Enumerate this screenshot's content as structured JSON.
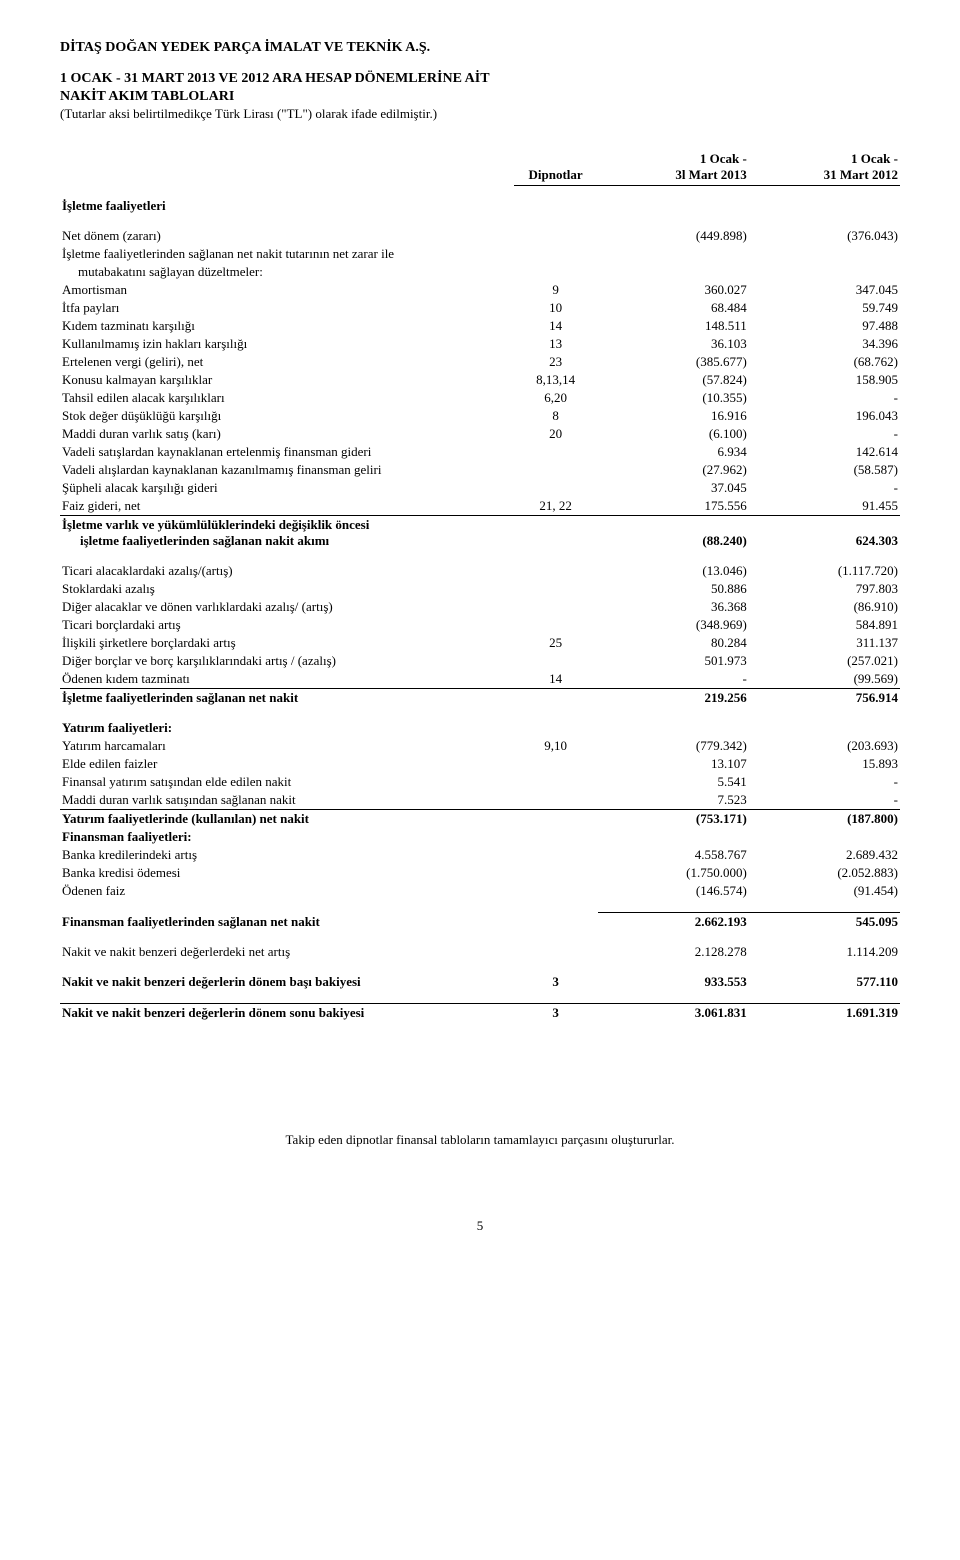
{
  "company": "DİTAŞ DOĞAN YEDEK PARÇA İMALAT VE TEKNİK A.Ş.",
  "title_line1": "1 OCAK - 31 MART 2013 VE 2012 ARA HESAP DÖNEMLERİNE AİT",
  "title_line2": "NAKİT AKIM TABLOLARI",
  "subtitle": "(Tutarlar aksi belirtilmedikçe Türk Lirası (\"TL\") olarak ifade edilmiştir.)",
  "header": {
    "notes": "Dipnotlar",
    "col1_l1": "1 Ocak -",
    "col1_l2": "3l Mart 2013",
    "col2_l1": "1 Ocak -",
    "col2_l2": "31 Mart 2012"
  },
  "sec_ops": "İşletme faaliyetleri",
  "rows_ops_pre": [
    {
      "label": "Net dönem (zararı)",
      "note": "",
      "v1": "(449.898)",
      "v2": "(376.043)"
    },
    {
      "label": "İşletme faaliyetlerinden sağlanan net nakit tutarının net zarar ile",
      "note": "",
      "v1": "",
      "v2": ""
    },
    {
      "label": "mutabakatını sağlayan düzeltmeler:",
      "indent": true,
      "note": "",
      "v1": "",
      "v2": ""
    },
    {
      "label": "Amortisman",
      "note": "9",
      "v1": "360.027",
      "v2": "347.045"
    },
    {
      "label": "İtfa payları",
      "note": "10",
      "v1": "68.484",
      "v2": "59.749"
    },
    {
      "label": "Kıdem tazminatı karşılığı",
      "note": "14",
      "v1": "148.511",
      "v2": "97.488"
    },
    {
      "label": "Kullanılmamış izin hakları karşılığı",
      "note": "13",
      "v1": "36.103",
      "v2": "34.396"
    },
    {
      "label": "Ertelenen vergi (geliri), net",
      "note": "23",
      "v1": "(385.677)",
      "v2": "(68.762)"
    },
    {
      "label": "Konusu kalmayan karşılıklar",
      "note": "8,13,14",
      "v1": "(57.824)",
      "v2": "158.905"
    },
    {
      "label": "Tahsil edilen alacak karşılıkları",
      "note": "6,20",
      "v1": "(10.355)",
      "v2": "-"
    },
    {
      "label": "Stok değer düşüklüğü karşılığı",
      "note": "8",
      "v1": "16.916",
      "v2": "196.043"
    },
    {
      "label": "Maddi duran varlık satış (karı)",
      "note": "20",
      "v1": "(6.100)",
      "v2": "-"
    },
    {
      "label": "Vadeli satışlardan kaynaklanan ertelenmiş finansman gideri",
      "note": "",
      "v1": "6.934",
      "v2": "142.614"
    },
    {
      "label": "Vadeli alışlardan kaynaklanan kazanılmamış finansman geliri",
      "note": "",
      "v1": "(27.962)",
      "v2": "(58.587)"
    },
    {
      "label": "Şüpheli alacak karşılığı gideri",
      "note": "",
      "v1": "37.045",
      "v2": "-"
    },
    {
      "label": "Faiz gideri, net",
      "note": "21, 22",
      "v1": "175.556",
      "v2": "91.455"
    }
  ],
  "ops_subtotal1": {
    "l1": "İşletme varlık ve yükümlülüklerindeki değişiklik öncesi",
    "l2": "işletme faaliyetlerinden sağlanan nakit akımı",
    "v1": "(88.240)",
    "v2": "624.303"
  },
  "rows_ops_wc": [
    {
      "label": "Ticari alacaklardaki azalış/(artış)",
      "note": "",
      "v1": "(13.046)",
      "v2": "(1.117.720)"
    },
    {
      "label": "Stoklardaki azalış",
      "note": "",
      "v1": "50.886",
      "v2": "797.803"
    },
    {
      "label": "Diğer alacaklar ve dönen varlıklardaki azalış/ (artış)",
      "note": "",
      "v1": "36.368",
      "v2": "(86.910)"
    },
    {
      "label": "Ticari borçlardaki artış",
      "note": "",
      "v1": "(348.969)",
      "v2": "584.891"
    },
    {
      "label": "İlişkili şirketlere borçlardaki artış",
      "note": "25",
      "v1": "80.284",
      "v2": "311.137"
    },
    {
      "label": "Diğer borçlar ve borç karşılıklarındaki artış / (azalış)",
      "note": "",
      "v1": "501.973",
      "v2": "(257.021)"
    },
    {
      "label": "Ödenen kıdem tazminatı",
      "note": "14",
      "v1": "-",
      "v2": "(99.569)"
    }
  ],
  "ops_total": {
    "label": "İşletme faaliyetlerinden sağlanan net nakit",
    "v1": "219.256",
    "v2": "756.914"
  },
  "sec_inv": "Yatırım faaliyetleri:",
  "rows_inv": [
    {
      "label": "Yatırım harcamaları",
      "note": "9,10",
      "v1": "(779.342)",
      "v2": "(203.693)"
    },
    {
      "label": "Elde edilen faizler",
      "note": "",
      "v1": "13.107",
      "v2": "15.893"
    },
    {
      "label": "Finansal yatırım satışından elde edilen nakit",
      "note": "",
      "v1": "5.541",
      "v2": "-"
    },
    {
      "label": "Maddi duran varlık satışından sağlanan nakit",
      "note": "",
      "v1": "7.523",
      "v2": "-"
    }
  ],
  "inv_total": {
    "label": "Yatırım faaliyetlerinde (kullanılan) net nakit",
    "v1": "(753.171)",
    "v2": "(187.800)"
  },
  "sec_fin": "Finansman faaliyetleri:",
  "rows_fin": [
    {
      "label": "Banka kredilerindeki artış",
      "note": "",
      "v1": "4.558.767",
      "v2": "2.689.432"
    },
    {
      "label": "Banka kredisi ödemesi",
      "note": "",
      "v1": "(1.750.000)",
      "v2": "(2.052.883)"
    },
    {
      "label": "Ödenen faiz",
      "note": "",
      "v1": "(146.574)",
      "v2": "(91.454)"
    }
  ],
  "fin_total": {
    "label": "Finansman faaliyetlerinden sağlanan net nakit",
    "v1": "2.662.193",
    "v2": "545.095"
  },
  "net_change": {
    "label": "Nakit ve nakit benzeri değerlerdeki net artış",
    "v1": "2.128.278",
    "v2": "1.114.209"
  },
  "beg_balance": {
    "label": "Nakit ve nakit benzeri değerlerin dönem başı bakiyesi",
    "note": "3",
    "v1": "933.553",
    "v2": "577.110"
  },
  "end_balance": {
    "label": "Nakit ve nakit benzeri değerlerin dönem sonu bakiyesi",
    "note": "3",
    "v1": "3.061.831",
    "v2": "1.691.319"
  },
  "footnote": "Takip eden dipnotlar finansal tabloların tamamlayıcı parçasını oluştururlar.",
  "page": "5"
}
